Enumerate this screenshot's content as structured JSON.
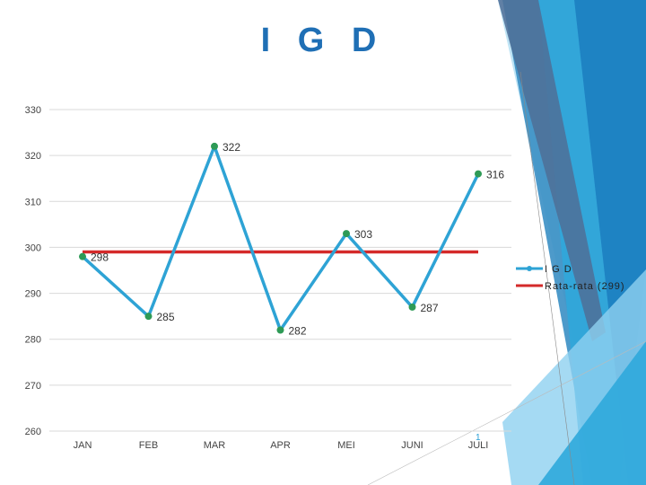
{
  "title": "I G D",
  "slide_number": "1",
  "colors": {
    "series": "#2ea3d5",
    "marker": "#2e9a56",
    "average": "#d42a2a",
    "title": "#1f6fb5"
  },
  "chart_data": {
    "type": "line",
    "title": "I G D",
    "categories": [
      "JAN",
      "FEB",
      "MAR",
      "APR",
      "MEI",
      "JUNI",
      "JULI"
    ],
    "series": [
      {
        "name": "I G D",
        "values": [
          298,
          285,
          322,
          282,
          303,
          287,
          316
        ]
      },
      {
        "name": "Rata-rata (299)",
        "values": [
          299,
          299,
          299,
          299,
          299,
          299,
          299
        ]
      }
    ],
    "yticks": [
      260,
      270,
      280,
      290,
      300,
      310,
      320,
      330
    ],
    "ylim": [
      260,
      330
    ],
    "grid": true,
    "legend": "right"
  }
}
